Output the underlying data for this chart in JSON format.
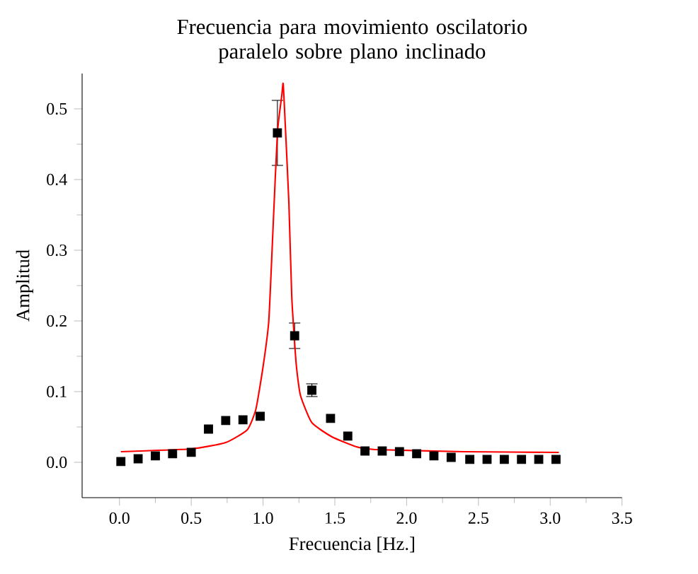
{
  "chart_data": {
    "type": "scatter",
    "title": "Frecuencia para movimiento oscilatorio paralelo sobre plano inclinado",
    "xlabel": "Frecuencia [Hz.]",
    "ylabel": "Amplitud",
    "xlim": [
      -0.26,
      3.5
    ],
    "ylim": [
      -0.05,
      0.55
    ],
    "xticks": [
      {
        "value": 0,
        "label": "0.0"
      },
      0.5,
      {
        "value": 1,
        "label": "1.0"
      },
      1.5,
      {
        "value": 2,
        "label": "2.0"
      },
      2.5,
      {
        "value": 3,
        "label": "3.0"
      },
      3.5
    ],
    "yticks": [
      {
        "value": 0,
        "label": "0.0"
      },
      0.1,
      0.2,
      0.3,
      0.4,
      0.5
    ],
    "series": [
      {
        "type": "scatter",
        "color": "#000000",
        "marker": "square",
        "x": [
          0.01,
          0.13,
          0.25,
          0.37,
          0.5,
          0.62,
          0.74,
          0.86,
          0.98,
          1.1,
          1.22,
          1.34,
          1.47,
          1.59,
          1.71,
          1.83,
          1.95,
          2.07,
          2.19,
          2.31,
          2.44,
          2.56,
          2.68,
          2.8,
          2.92,
          3.04
        ],
        "values": [
          0.001,
          0.005,
          0.009,
          0.012,
          0.014,
          0.047,
          0.059,
          0.06,
          0.065,
          0.466,
          0.179,
          0.102,
          0.062,
          0.037,
          0.016,
          0.016,
          0.015,
          0.012,
          0.009,
          0.007,
          0.004,
          0.004,
          0.004,
          0.004,
          0.004,
          0.004
        ],
        "errors": [
          null,
          null,
          null,
          null,
          null,
          null,
          null,
          null,
          null,
          0.046,
          0.018,
          0.009,
          null,
          null,
          null,
          null,
          null,
          null,
          null,
          null,
          null,
          null,
          null,
          null,
          null,
          null
        ]
      },
      {
        "type": "line",
        "color": "#ff0000",
        "marker": "none",
        "x": [
          0.01,
          0.5,
          0.74,
          0.89,
          0.95,
          1.0,
          1.04,
          1.07,
          1.1,
          1.13,
          1.14,
          1.15,
          1.18,
          1.2,
          1.23,
          1.26,
          1.34,
          1.48,
          1.65,
          1.78,
          2.4,
          3.06
        ],
        "values": [
          0.015,
          0.019,
          0.028,
          0.046,
          0.075,
          0.135,
          0.2,
          0.333,
          0.466,
          0.518,
          0.536,
          0.498,
          0.367,
          0.234,
          0.141,
          0.095,
          0.056,
          0.036,
          0.022,
          0.018,
          0.015,
          0.014
        ]
      }
    ]
  }
}
